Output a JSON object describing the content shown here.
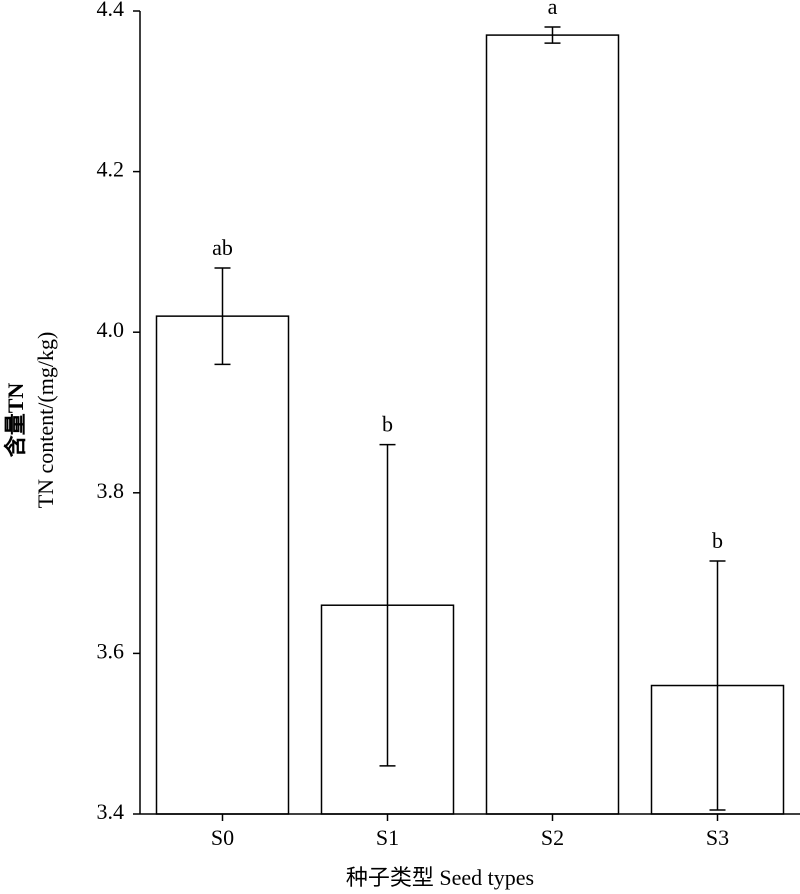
{
  "chart_data": {
    "type": "bar",
    "x_label": "种子类型 Seed types",
    "y_label": [
      "含量TN",
      "TN content/(mg/kg)"
    ],
    "categories": [
      "S0",
      "S1",
      "S2",
      "S3"
    ],
    "values": [
      4.02,
      3.66,
      4.37,
      3.56
    ],
    "errors": [
      0.06,
      0.2,
      0.01,
      0.155
    ],
    "letters": [
      "ab",
      "b",
      "a",
      "b"
    ],
    "color": "#ffffff",
    "ylim": [
      3.4,
      4.4
    ],
    "yticks": [
      3.4,
      3.6,
      3.8,
      {
        "value": 4,
        "label": "4.0"
      },
      4.2,
      4.4
    ],
    "grid": false
  }
}
